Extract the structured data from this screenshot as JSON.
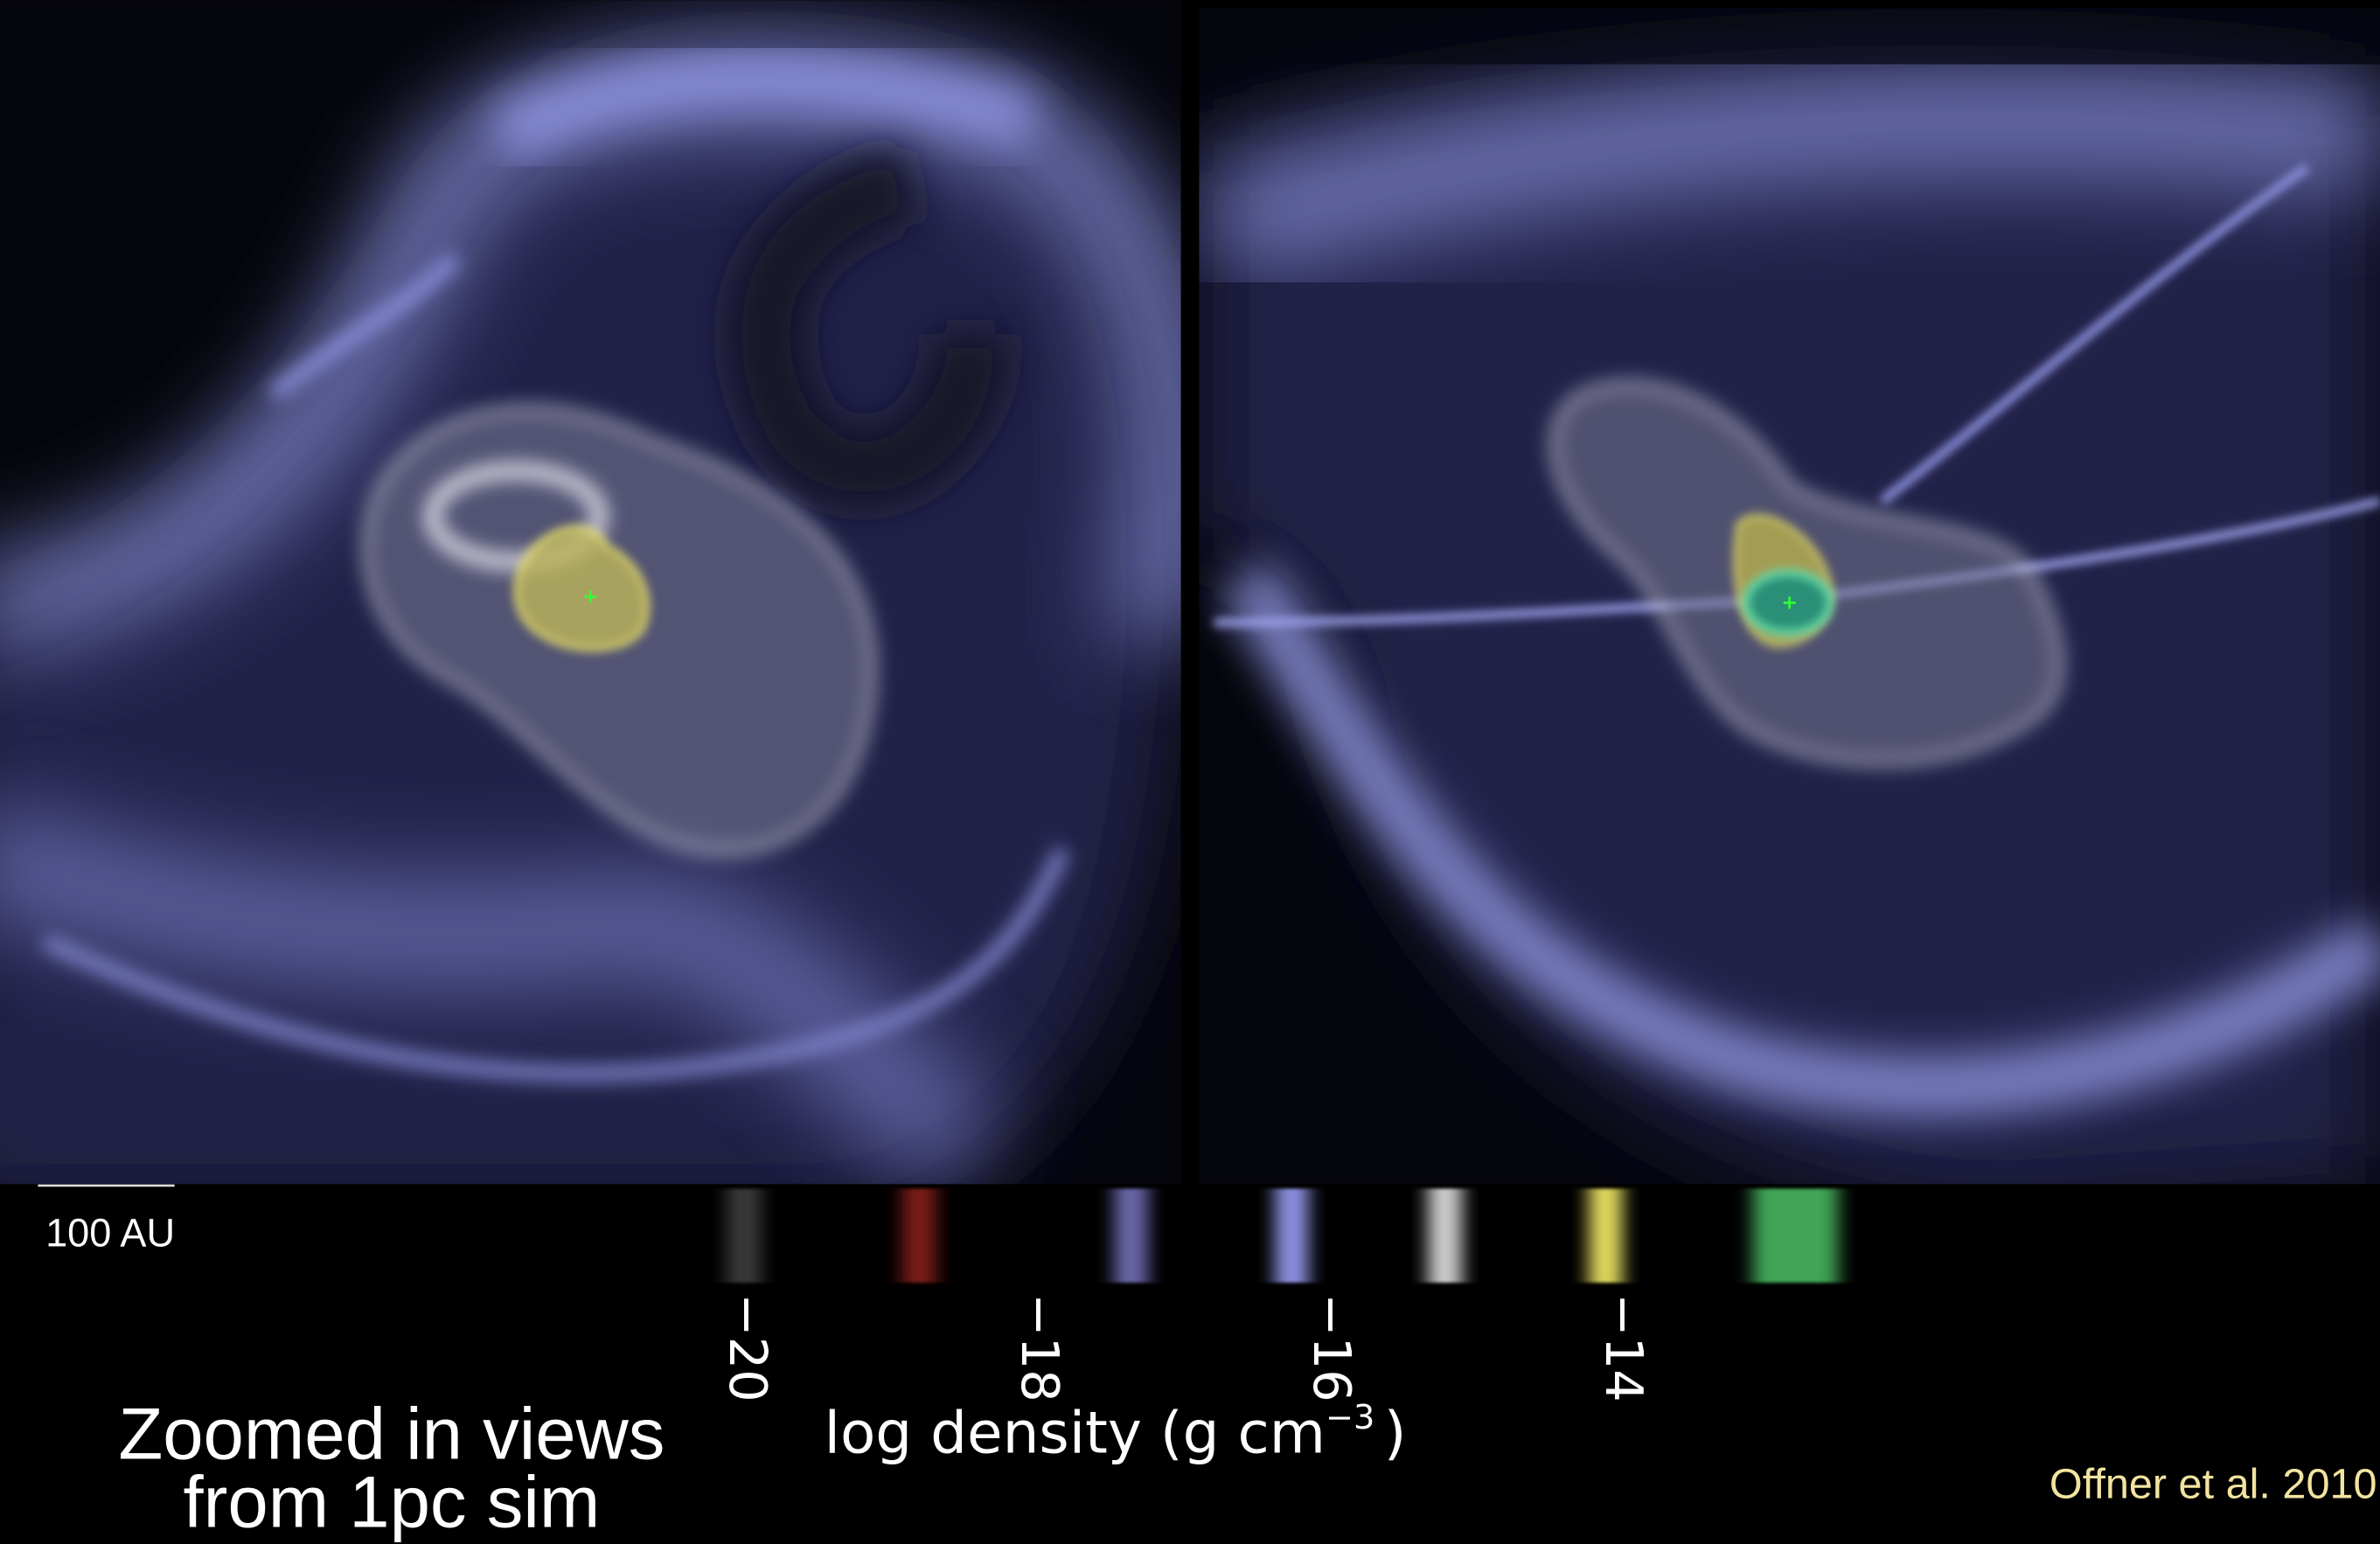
{
  "caption": {
    "line1": "Zoomed in views",
    "line2": "from 1pc sim"
  },
  "scale_bar": {
    "label": "100 AU"
  },
  "credit": "Offner et al. 2010",
  "colorbar": {
    "range": [
      -20.2,
      -12.3
    ],
    "ticks": [
      {
        "value": -20,
        "label": "−20"
      },
      {
        "value": -18,
        "label": "−18"
      },
      {
        "value": -16,
        "label": "−16"
      },
      {
        "value": -14,
        "label": "−14"
      }
    ],
    "bands": [
      {
        "value": -20,
        "color": "#3a3a3a"
      },
      {
        "value": -18.8,
        "color": "#7a1c12"
      },
      {
        "value": -17.35,
        "color": "#6c68aa"
      },
      {
        "value": -16.25,
        "color": "#8c92e2"
      },
      {
        "value": -15.2,
        "color": "#cfcfcf"
      },
      {
        "value": -14.1,
        "color": "#e2da5e"
      },
      {
        "value": -12.8,
        "color": "#3fa556"
      }
    ],
    "label": {
      "text": "log density (g cm",
      "superscript": "−3",
      "close": ")"
    }
  }
}
